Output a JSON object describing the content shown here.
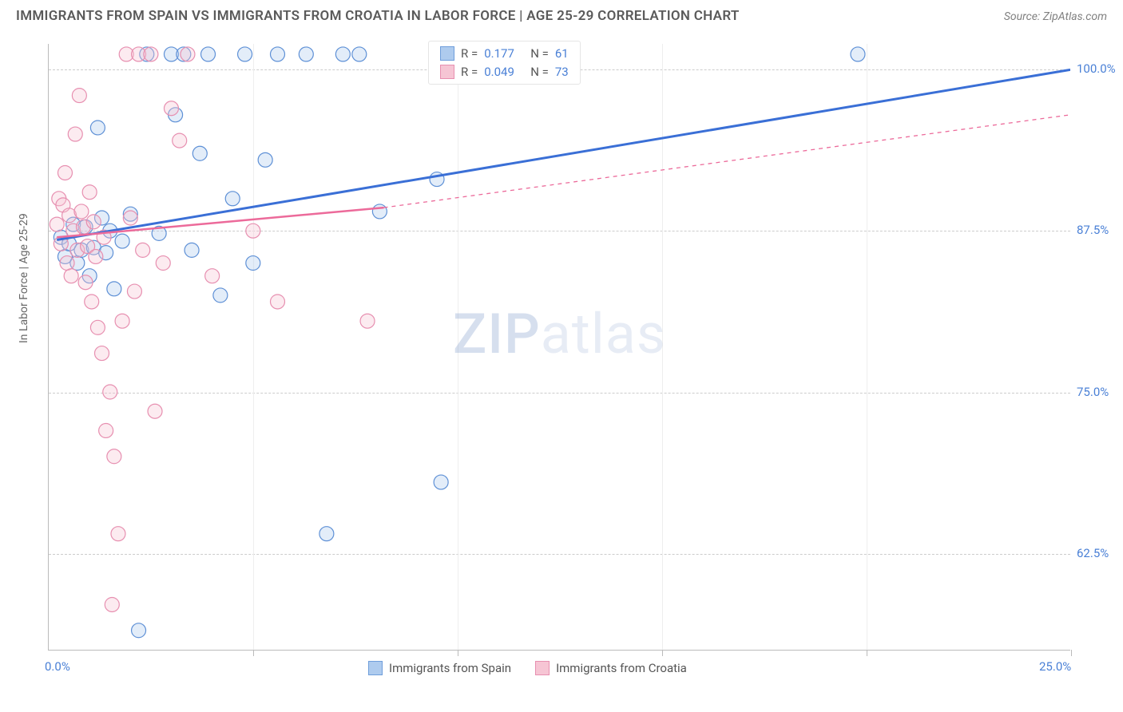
{
  "title": "IMMIGRANTS FROM SPAIN VS IMMIGRANTS FROM CROATIA IN LABOR FORCE | AGE 25-29 CORRELATION CHART",
  "source": "Source: ZipAtlas.com",
  "ylabel": "In Labor Force | Age 25-29",
  "watermark_a": "ZIP",
  "watermark_b": "atlas",
  "chart": {
    "type": "scatter",
    "background_color": "#ffffff",
    "grid_color": "#cccccc",
    "axis_color": "#bbbbbb",
    "marker_radius": 9,
    "marker_stroke_width": 1.2,
    "marker_fill_opacity": 0.35,
    "xlim": [
      0,
      25
    ],
    "ylim": [
      55,
      102
    ],
    "xticks": [
      0,
      5,
      10,
      15,
      20,
      25
    ],
    "xtick_labels": {
      "0": "0.0%",
      "25": "25.0%"
    },
    "yticks": [
      62.5,
      75,
      87.5,
      100
    ],
    "ytick_labels": {
      "62.5": "62.5%",
      "75": "75.0%",
      "87.5": "87.5%",
      "100": "100.0%"
    },
    "label_fontsize": 15,
    "label_color": "#4a80d6",
    "axis_label_fontsize": 14,
    "axis_label_color": "#666666"
  },
  "legend_top": {
    "rows": [
      {
        "swatch_fill": "#aecbee",
        "swatch_stroke": "#6f9edb",
        "r_label": "R =",
        "r": "0.177",
        "n_label": "N =",
        "n": "61"
      },
      {
        "swatch_fill": "#f6c5d4",
        "swatch_stroke": "#e78fb0",
        "r_label": "R =",
        "r": "0.049",
        "n_label": "N =",
        "n": "73"
      }
    ]
  },
  "legend_bottom": {
    "items": [
      {
        "swatch_fill": "#aecbee",
        "swatch_stroke": "#6f9edb",
        "label": "Immigrants from Spain"
      },
      {
        "swatch_fill": "#f6c5d4",
        "swatch_stroke": "#e78fb0",
        "label": "Immigrants from Croatia"
      }
    ]
  },
  "series": [
    {
      "name": "spain",
      "color_fill": "#aecbee",
      "color_stroke": "#5e90d6",
      "trend": {
        "x1": 0.2,
        "y1": 86.8,
        "x2": 25,
        "y2": 100,
        "width": 3,
        "dash": "",
        "color": "#3a6fd6"
      },
      "points": [
        [
          0.3,
          87.0
        ],
        [
          0.4,
          85.5
        ],
        [
          0.5,
          86.5
        ],
        [
          0.6,
          88.0
        ],
        [
          0.7,
          85.0
        ],
        [
          0.8,
          86.0
        ],
        [
          0.9,
          87.8
        ],
        [
          1.0,
          84.0
        ],
        [
          1.1,
          86.2
        ],
        [
          1.2,
          95.5
        ],
        [
          1.3,
          88.5
        ],
        [
          1.4,
          85.8
        ],
        [
          1.5,
          87.5
        ],
        [
          1.6,
          83.0
        ],
        [
          1.8,
          86.7
        ],
        [
          2.0,
          88.8
        ],
        [
          2.2,
          56.5
        ],
        [
          2.4,
          101.2
        ],
        [
          2.7,
          87.3
        ],
        [
          3.0,
          101.2
        ],
        [
          3.1,
          96.5
        ],
        [
          3.3,
          101.2
        ],
        [
          3.5,
          86.0
        ],
        [
          3.7,
          93.5
        ],
        [
          3.9,
          101.2
        ],
        [
          4.2,
          82.5
        ],
        [
          4.5,
          90.0
        ],
        [
          4.8,
          101.2
        ],
        [
          5.0,
          85.0
        ],
        [
          5.3,
          93.0
        ],
        [
          5.6,
          101.2
        ],
        [
          6.3,
          101.2
        ],
        [
          6.8,
          64.0
        ],
        [
          7.2,
          101.2
        ],
        [
          7.6,
          101.2
        ],
        [
          8.1,
          89.0
        ],
        [
          9.5,
          91.5
        ],
        [
          9.6,
          68.0
        ],
        [
          9.8,
          101.2
        ],
        [
          19.8,
          101.2
        ]
      ]
    },
    {
      "name": "croatia",
      "color_fill": "#f6c5d4",
      "color_stroke": "#e78fb0",
      "trend_solid": {
        "x1": 0.2,
        "y1": 87.0,
        "x2": 8.2,
        "y2": 89.3,
        "width": 2.5,
        "color": "#ec6a9a"
      },
      "trend_dash": {
        "x1": 8.2,
        "y1": 89.3,
        "x2": 25,
        "y2": 96.5,
        "width": 1.3,
        "dash": "5,5",
        "color": "#ec6a9a"
      },
      "points": [
        [
          0.2,
          88.0
        ],
        [
          0.25,
          90.0
        ],
        [
          0.3,
          86.5
        ],
        [
          0.35,
          89.5
        ],
        [
          0.4,
          92.0
        ],
        [
          0.45,
          85.0
        ],
        [
          0.5,
          88.7
        ],
        [
          0.55,
          84.0
        ],
        [
          0.6,
          87.5
        ],
        [
          0.65,
          95.0
        ],
        [
          0.7,
          86.0
        ],
        [
          0.75,
          98.0
        ],
        [
          0.8,
          89.0
        ],
        [
          0.85,
          87.8
        ],
        [
          0.9,
          83.5
        ],
        [
          0.95,
          86.3
        ],
        [
          1.0,
          90.5
        ],
        [
          1.05,
          82.0
        ],
        [
          1.1,
          88.2
        ],
        [
          1.15,
          85.5
        ],
        [
          1.2,
          80.0
        ],
        [
          1.3,
          78.0
        ],
        [
          1.35,
          87.0
        ],
        [
          1.4,
          72.0
        ],
        [
          1.5,
          75.0
        ],
        [
          1.55,
          58.5
        ],
        [
          1.6,
          70.0
        ],
        [
          1.7,
          64.0
        ],
        [
          1.8,
          80.5
        ],
        [
          1.9,
          101.2
        ],
        [
          2.0,
          88.5
        ],
        [
          2.1,
          82.8
        ],
        [
          2.2,
          101.2
        ],
        [
          2.3,
          86.0
        ],
        [
          2.5,
          101.2
        ],
        [
          2.6,
          73.5
        ],
        [
          2.8,
          85.0
        ],
        [
          3.0,
          97.0
        ],
        [
          3.2,
          94.5
        ],
        [
          3.4,
          101.2
        ],
        [
          4.0,
          84.0
        ],
        [
          5.0,
          87.5
        ],
        [
          5.6,
          82.0
        ],
        [
          7.8,
          80.5
        ]
      ]
    }
  ]
}
